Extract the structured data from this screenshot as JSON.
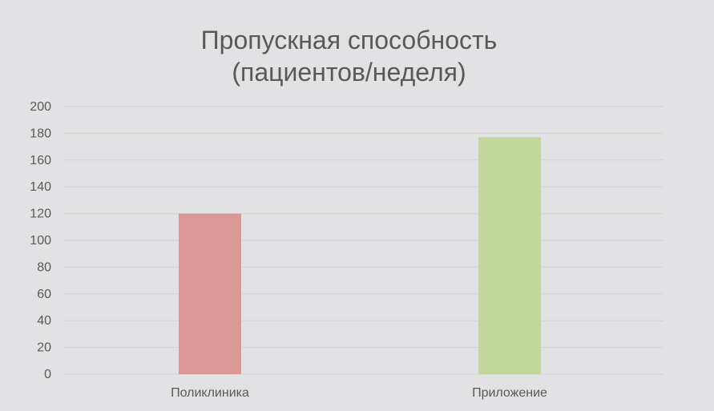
{
  "chart_data": {
    "type": "bar",
    "title_lines": [
      "Пропускная способность",
      "(пациентов/неделя)"
    ],
    "categories": [
      "Поликлиника",
      "Приложение"
    ],
    "values": [
      120,
      177
    ],
    "colors": [
      "#d99795",
      "#c3d69b"
    ],
    "ylim": [
      0,
      200
    ],
    "yticks": [
      0,
      20,
      40,
      60,
      80,
      100,
      120,
      140,
      160,
      180,
      200
    ],
    "grid": true,
    "legend": "none"
  }
}
